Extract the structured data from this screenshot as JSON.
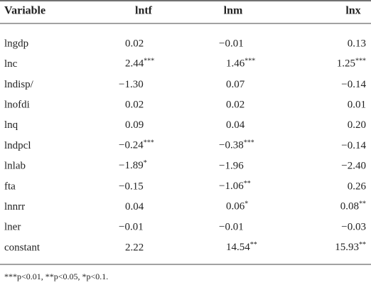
{
  "table": {
    "header": [
      "Variable",
      "lntf",
      "lnm",
      "lnx"
    ],
    "rows": [
      [
        "lngdp",
        "0.02",
        "−0.01",
        "0.13"
      ],
      [
        "lnc",
        {
          "text": "2.44",
          "sig": "***"
        },
        {
          "text": "1.46",
          "sig": "***"
        },
        {
          "text": "1.25",
          "sig": "***"
        }
      ],
      [
        "lndisp/",
        "−1.30",
        "0.07",
        "−0.14"
      ],
      [
        "lnofdi",
        "0.02",
        "0.02",
        "0.01"
      ],
      [
        "lnq",
        "0.09",
        "0.04",
        "0.20"
      ],
      [
        "lndpcl",
        {
          "text": "−0.24",
          "sig": "***"
        },
        {
          "text": "−0.38",
          "sig": "***"
        },
        "−0.14"
      ],
      [
        "lnlab",
        {
          "text": "−1.89",
          "sig": "*"
        },
        "−1.96",
        "−2.40"
      ],
      [
        "fta",
        "−0.15",
        {
          "text": "−1.06",
          "sig": "**"
        },
        "0.26"
      ],
      [
        "lnnrr",
        "0.04",
        {
          "text": "0.06",
          "sig": "*"
        },
        {
          "text": "0.08",
          "sig": "**"
        }
      ],
      [
        "lner",
        "−0.01",
        "−0.01",
        "−0.03"
      ],
      [
        "constant",
        "2.22",
        {
          "text": "14.54",
          "sig": "**"
        },
        {
          "text": "15.93",
          "sig": "**"
        }
      ]
    ],
    "footnote": "***p<0.01, **p<0.05, *p<0.1."
  }
}
